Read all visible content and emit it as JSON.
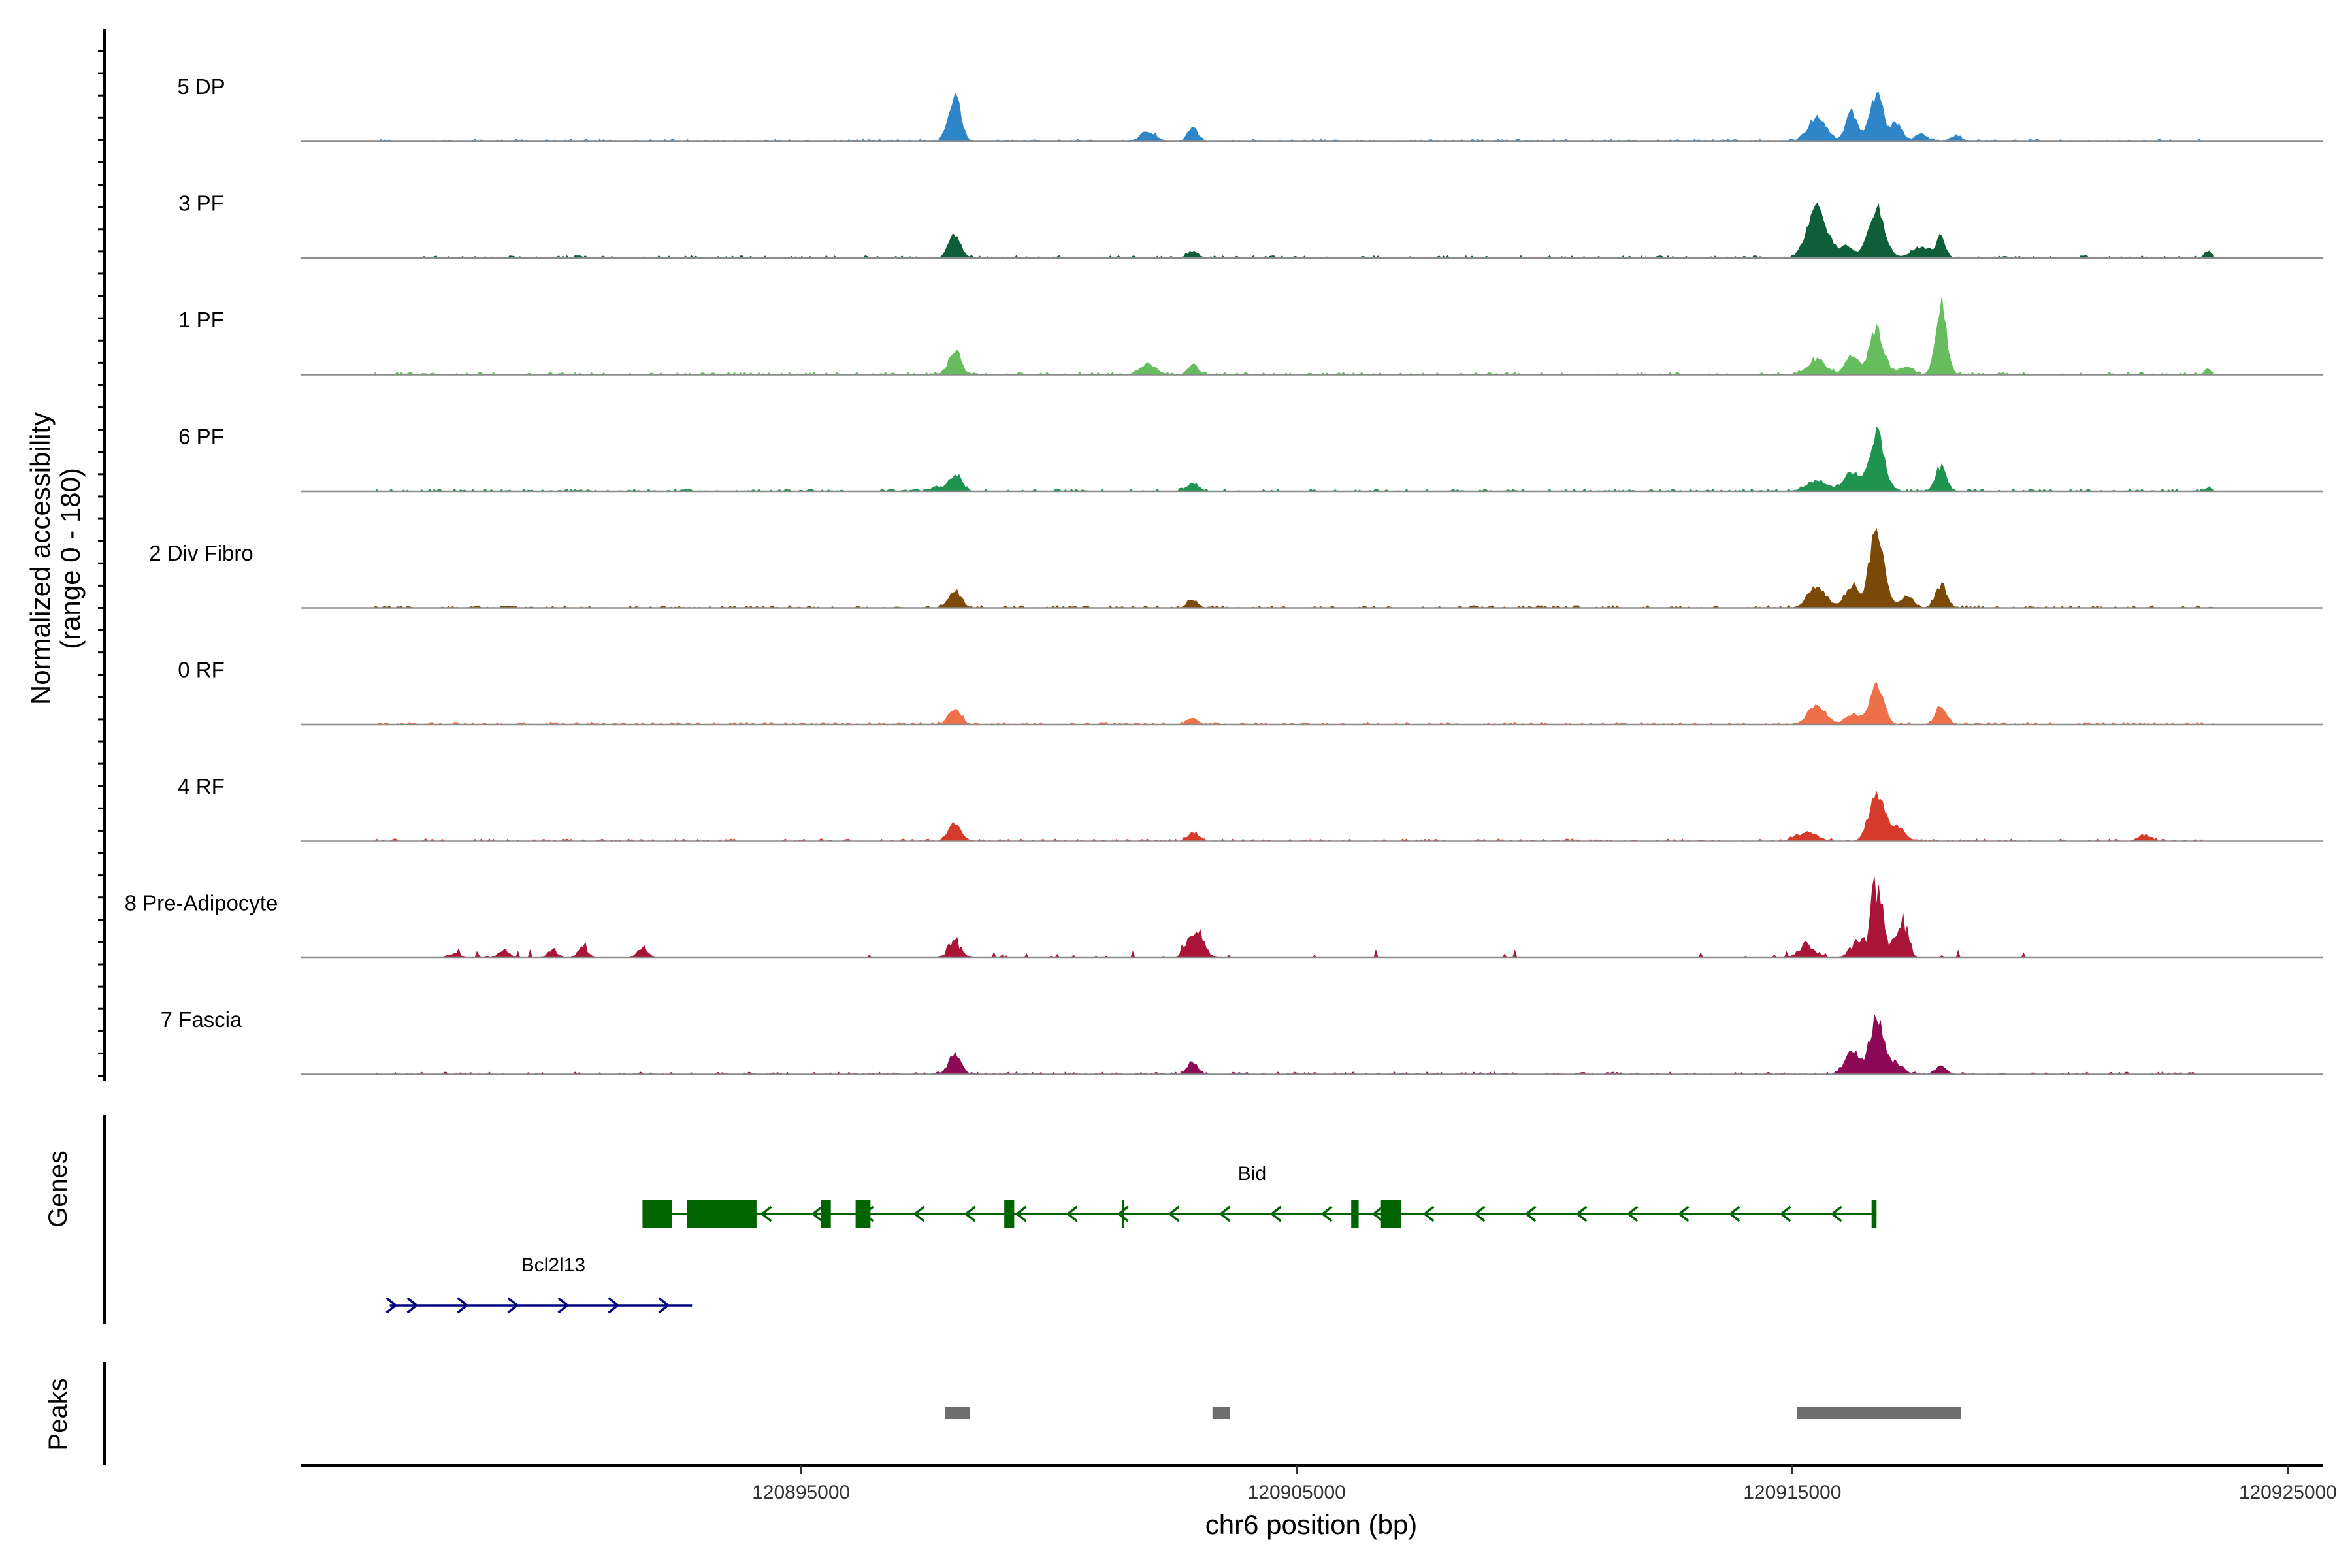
{
  "chart_data": {
    "type": "area",
    "title": "",
    "ylabel": "Normalized accessibility",
    "ylabel_range": "(range 0 - 180)",
    "xlabel": "chr6 position (bp)",
    "xlim": [
      120884900,
      120925700
    ],
    "x_ticks": [
      120895000,
      120905000,
      120915000,
      120925000
    ],
    "x_tick_labels": [
      "120895000",
      "120905000",
      "120915000",
      "120925000"
    ],
    "ylim_per_track": [
      0,
      180
    ],
    "tracks": [
      {
        "name": "5 DP",
        "color": "#2E86C8",
        "peaks": [
          [
            120898100,
            45,
            120
          ],
          [
            120902000,
            10,
            150
          ],
          [
            120902900,
            14,
            100
          ],
          [
            120915500,
            24,
            180
          ],
          [
            120916700,
            45,
            130
          ],
          [
            120917100,
            18,
            120
          ],
          [
            120916200,
            28,
            120
          ],
          [
            120917600,
            8,
            120
          ],
          [
            120918300,
            5,
            120
          ]
        ]
      },
      {
        "name": "3 PF",
        "color": "#0E5E37",
        "peaks": [
          [
            120898100,
            23,
            120
          ],
          [
            120902900,
            5,
            120
          ],
          [
            120915500,
            50,
            190
          ],
          [
            120916700,
            50,
            160
          ],
          [
            120916100,
            12,
            150
          ],
          [
            120917600,
            10,
            200
          ],
          [
            120918000,
            20,
            90
          ],
          [
            120923400,
            6,
            80
          ]
        ]
      },
      {
        "name": "1 PF",
        "color": "#66BD5E",
        "peaks": [
          [
            120898100,
            23,
            120
          ],
          [
            120902000,
            10,
            160
          ],
          [
            120902900,
            9,
            100
          ],
          [
            120915500,
            15,
            180
          ],
          [
            120916700,
            43,
            140
          ],
          [
            120916200,
            18,
            130
          ],
          [
            120917300,
            8,
            140
          ],
          [
            120918000,
            68,
            110
          ],
          [
            120923400,
            4,
            80
          ]
        ]
      },
      {
        "name": "6 PF",
        "color": "#1E9450",
        "peaks": [
          [
            120898100,
            16,
            130
          ],
          [
            120902900,
            7,
            120
          ],
          [
            120897700,
            4,
            90
          ],
          [
            120915500,
            10,
            200
          ],
          [
            120916700,
            56,
            150
          ],
          [
            120916200,
            18,
            160
          ],
          [
            120918000,
            24,
            110
          ],
          [
            120923400,
            3,
            80
          ]
        ]
      },
      {
        "name": "2 Div Fibro",
        "color": "#7C4A08",
        "peaks": [
          [
            120898100,
            18,
            120
          ],
          [
            120902900,
            8,
            100
          ],
          [
            120915500,
            20,
            180
          ],
          [
            120916700,
            80,
            140
          ],
          [
            120916200,
            22,
            130
          ],
          [
            120917300,
            12,
            130
          ],
          [
            120918000,
            22,
            110
          ]
        ]
      },
      {
        "name": "0 RF",
        "color": "#EE7048",
        "peaks": [
          [
            120898100,
            16,
            120
          ],
          [
            120902900,
            6,
            100
          ],
          [
            120915500,
            18,
            180
          ],
          [
            120916700,
            40,
            140
          ],
          [
            120916200,
            10,
            130
          ],
          [
            120918000,
            18,
            110
          ]
        ]
      },
      {
        "name": "4 RF",
        "color": "#D53A2B",
        "peaks": [
          [
            120898100,
            18,
            120
          ],
          [
            120902900,
            8,
            100
          ],
          [
            120915300,
            8,
            200
          ],
          [
            120916700,
            45,
            150
          ],
          [
            120917100,
            14,
            160
          ],
          [
            120922100,
            6,
            120
          ]
        ]
      },
      {
        "name": "8 Pre-Adipocyte",
        "color": "#AA1437",
        "peaks": [
          [
            120898100,
            18,
            130
          ],
          [
            120902900,
            30,
            120
          ],
          [
            120903100,
            10,
            120
          ],
          [
            120915300,
            15,
            160
          ],
          [
            120916700,
            75,
            120
          ],
          [
            120917200,
            52,
            110
          ],
          [
            120916300,
            18,
            130
          ],
          [
            120889000,
            10,
            100
          ],
          [
            120890600,
            10,
            100
          ],
          [
            120891800,
            12,
            100
          ],
          [
            120888000,
            6,
            100
          ],
          [
            120890000,
            8,
            100
          ]
        ]
      },
      {
        "name": "7 Fascia",
        "color": "#8C0A55",
        "peaks": [
          [
            120898100,
            20,
            120
          ],
          [
            120902900,
            12,
            100
          ],
          [
            120916700,
            55,
            140
          ],
          [
            120916200,
            22,
            140
          ],
          [
            120917100,
            10,
            140
          ],
          [
            120918000,
            8,
            110
          ]
        ]
      }
    ],
    "genes_title": "Genes",
    "genes": [
      {
        "name": "Bid",
        "strand": "-",
        "start": 120891800,
        "end": 120916700,
        "color": "#006400",
        "exons": [
          [
            120891800,
            120892400
          ],
          [
            120892700,
            120894100
          ],
          [
            120895400,
            120895600
          ],
          [
            120896100,
            120896400
          ],
          [
            120899100,
            120899300
          ],
          [
            120906100,
            120906250
          ],
          [
            120906700,
            120907100
          ],
          [
            120916600,
            120916700
          ]
        ]
      },
      {
        "name": "Bcl2l13",
        "strand": "+",
        "start": 120886700,
        "end": 120892800,
        "color": "#000080",
        "exons": []
      }
    ],
    "peaks_title": "Peaks",
    "peak_regions": [
      [
        120897900,
        120898400
      ],
      [
        120903300,
        120903650
      ],
      [
        120915100,
        120918400
      ]
    ],
    "peak_color": "#6E6E6E"
  }
}
